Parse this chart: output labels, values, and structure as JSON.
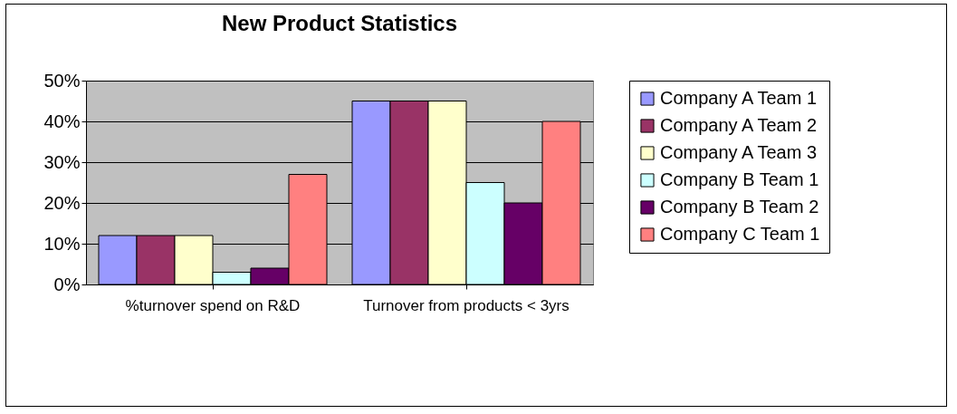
{
  "chart_data": {
    "type": "bar",
    "title": "New Product Statistics",
    "categories": [
      "%turnover spend on R&D",
      "Turnover from products < 3yrs"
    ],
    "series": [
      {
        "name": "Company A Team 1",
        "color": "#9999ff",
        "values": [
          12,
          45
        ]
      },
      {
        "name": "Company A Team 2",
        "color": "#993366",
        "values": [
          12,
          45
        ]
      },
      {
        "name": "Company A Team 3",
        "color": "#ffffcc",
        "values": [
          12,
          45
        ]
      },
      {
        "name": "Company B Team 1",
        "color": "#ccffff",
        "values": [
          3,
          25
        ]
      },
      {
        "name": "Company B Team 2",
        "color": "#660066",
        "values": [
          4,
          20
        ]
      },
      {
        "name": "Company C Team 1",
        "color": "#ff8080",
        "values": [
          27,
          40
        ]
      }
    ],
    "ylim": [
      0,
      50
    ],
    "yticks": [
      {
        "value": 0,
        "label": "0%"
      },
      {
        "value": 10,
        "label": "10%"
      },
      {
        "value": 20,
        "label": "20%"
      },
      {
        "value": 30,
        "label": "30%"
      },
      {
        "value": 40,
        "label": "40%"
      },
      {
        "value": 50,
        "label": "50%"
      }
    ],
    "grid": "y",
    "legend": "right"
  }
}
